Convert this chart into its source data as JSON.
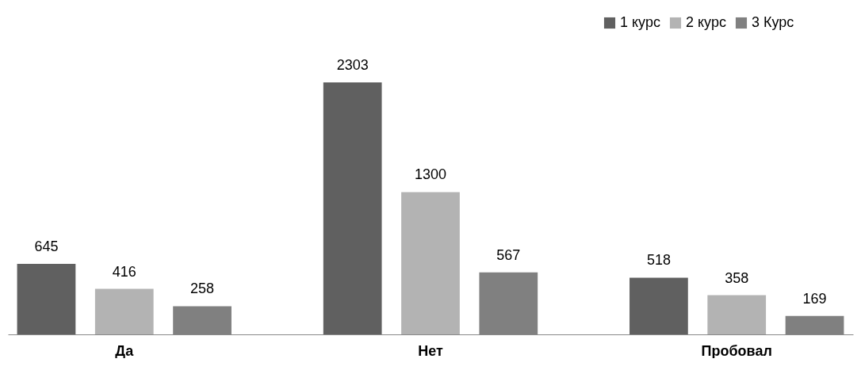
{
  "chart_data": {
    "type": "bar",
    "categories": [
      "Да",
      "Нет",
      "Пробовал"
    ],
    "series": [
      {
        "name": "1 курс",
        "color": "#606060",
        "values": [
          645,
          2303,
          518
        ]
      },
      {
        "name": "2 курс",
        "color": "#b3b3b3",
        "values": [
          416,
          1300,
          358
        ]
      },
      {
        "name": "3 Курс",
        "color": "#808080",
        "values": [
          258,
          567,
          169
        ]
      }
    ],
    "data_labels": true,
    "legend": "top right"
  }
}
